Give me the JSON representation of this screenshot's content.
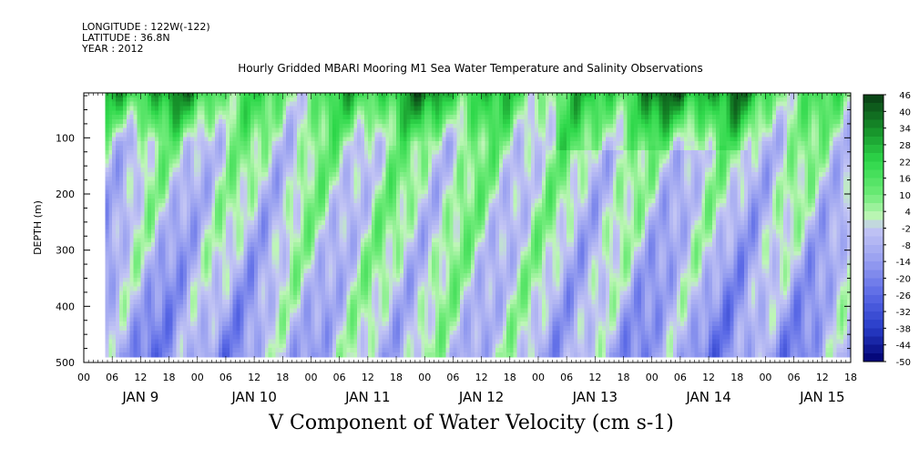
{
  "header": {
    "longitude": "LONGITUDE : 122W(-122)",
    "latitude": "LATITUDE : 36.8N",
    "year": "YEAR : 2012"
  },
  "chart_data": {
    "type": "heatmap",
    "title": "Hourly Gridded MBARI Mooring M1 Sea Water Temperature and Salinity Observations",
    "xlabel": "V Component of Water Velocity (cm s-1)",
    "ylabel": "DEPTH (m)",
    "y_axis": {
      "ticks": [
        100,
        200,
        300,
        400,
        500
      ],
      "ylim": [
        20,
        500
      ],
      "inverted": true
    },
    "x_axis": {
      "hour_tick_labels": [
        "00",
        "06",
        "12",
        "18",
        "00",
        "06",
        "12",
        "18",
        "00",
        "06",
        "12",
        "18",
        "00",
        "06",
        "12",
        "18",
        "00",
        "06",
        "12",
        "18",
        "00",
        "06",
        "12",
        "18",
        "00",
        "06",
        "12",
        "18"
      ],
      "day_labels": [
        "JAN  9",
        "JAN 10",
        "JAN 11",
        "JAN 12",
        "JAN 13",
        "JAN 14",
        "JAN 15"
      ],
      "range_hours_from_jan9": [
        0,
        162
      ]
    },
    "colorbar": {
      "labels": [
        "46",
        "40",
        "34",
        "28",
        "22",
        "16",
        "10",
        "4",
        "-2",
        "-8",
        "-14",
        "-20",
        "-26",
        "-32",
        "-38",
        "-44",
        "-50"
      ],
      "levels": [
        46,
        43,
        40,
        37,
        34,
        31,
        28,
        25,
        22,
        19,
        16,
        13,
        10,
        7,
        4,
        1,
        -2,
        -5,
        -8,
        -11,
        -14,
        -17,
        -20,
        -23,
        -26,
        -29,
        -32,
        -35,
        -38,
        -41,
        -44,
        -47,
        -50
      ],
      "colors": {
        "top": "#0a3d14",
        "mid_green": "#2ed84a",
        "light_green": "#b6f5b0",
        "light_blue": "#c4c4f4",
        "mid_blue": "#7a86ee",
        "bottom": "#000070"
      }
    },
    "data_extent_hours": [
      4.5,
      162
    ],
    "data_extent_depth": [
      20,
      490
    ],
    "palette_description": "positive values in greens (dark green near surface), negative values in blues/lavender at depth"
  }
}
